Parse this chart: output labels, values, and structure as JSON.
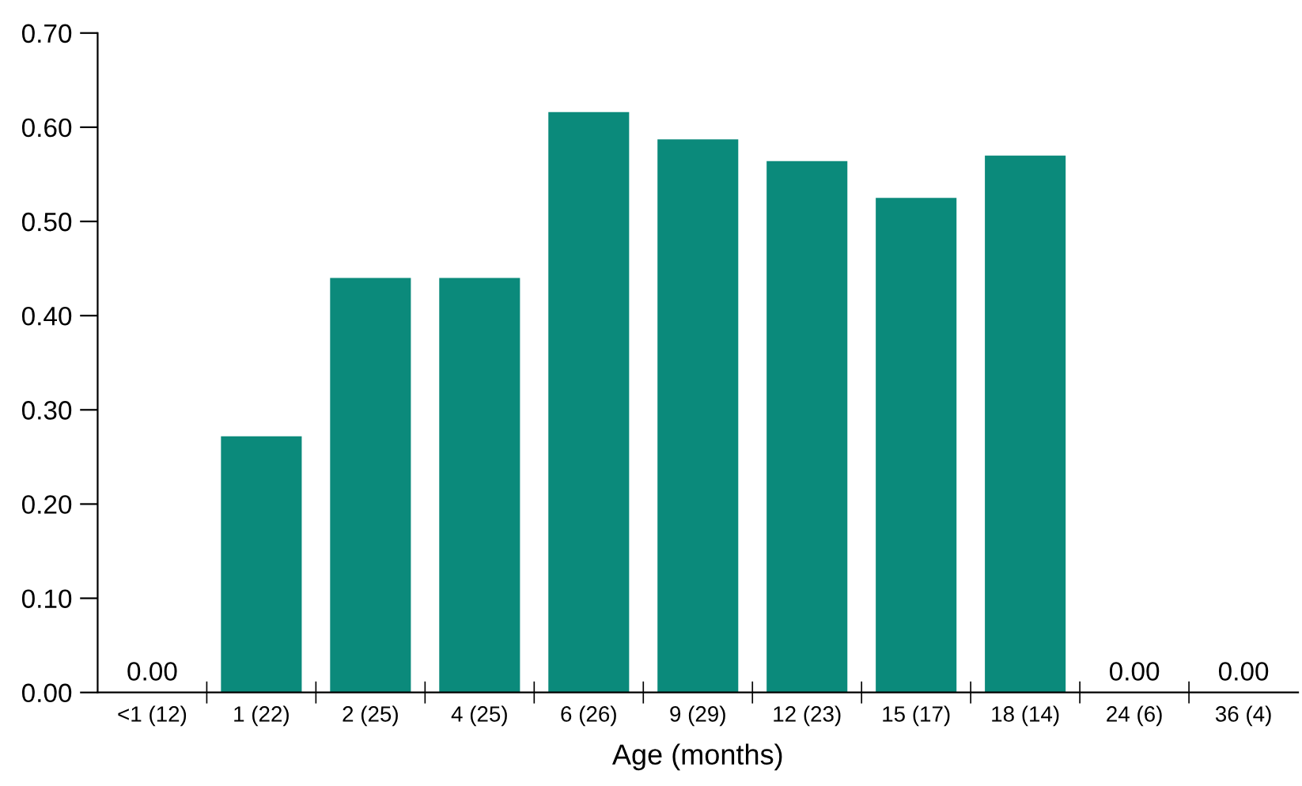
{
  "chart_data": {
    "type": "bar",
    "xlabel": "Age (months)",
    "categories": [
      "<1 (12)",
      "1 (22)",
      "2 (25)",
      "4 (25)",
      "6 (26)",
      "9 (29)",
      "12 (23)",
      "15 (17)",
      "18 (14)",
      "24 (6)",
      "36 (4)"
    ],
    "values": [
      0.0,
      0.272,
      0.44,
      0.44,
      0.616,
      0.587,
      0.564,
      0.525,
      0.57,
      0.0,
      0.0
    ],
    "value_labels": [
      "0.00",
      null,
      null,
      null,
      null,
      null,
      null,
      null,
      null,
      "0.00",
      "0.00"
    ],
    "color": "#0b8a7b",
    "ylim": [
      0,
      0.7
    ],
    "yticks": [
      {
        "value": 0,
        "label": "0.00"
      },
      {
        "value": 0.1,
        "label": "0.10"
      },
      {
        "value": 0.2,
        "label": "0.20"
      },
      {
        "value": 0.3,
        "label": "0.30"
      },
      {
        "value": 0.4,
        "label": "0.40"
      },
      {
        "value": 0.5,
        "label": "0.50"
      },
      {
        "value": 0.6,
        "label": "0.60"
      },
      {
        "value": 0.7,
        "label": "0.70"
      }
    ],
    "grid": false,
    "legend": false
  }
}
